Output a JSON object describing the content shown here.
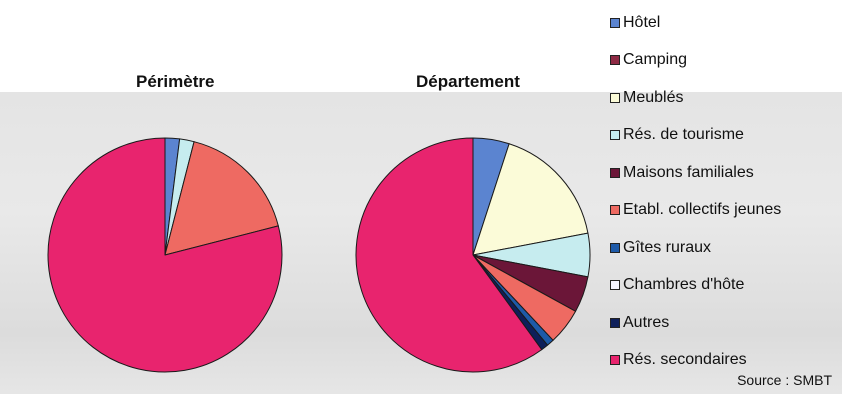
{
  "chart_data": [
    {
      "type": "pie",
      "title": "Périmètre",
      "labels": [
        "Hôtel",
        "Camping",
        "Meublés",
        "Rés. de tourisme",
        "Maisons familiales",
        "Etabl. collectifs jeunes",
        "Gîtes ruraux",
        "Chambres d'hôte",
        "Autres",
        "Rés. secondaires"
      ],
      "values": [
        2.0,
        0.0,
        0.0,
        2.0,
        0.0,
        17.0,
        0.0,
        0.0,
        0.0,
        79.0
      ]
    },
    {
      "type": "pie",
      "title": "Département",
      "labels": [
        "Hôtel",
        "Camping",
        "Meublés",
        "Rés. de tourisme",
        "Maisons familiales",
        "Etabl. collectifs jeunes",
        "Gîtes ruraux",
        "Chambres d'hôte",
        "Autres",
        "Rés. secondaires"
      ],
      "values": [
        5.0,
        0.0,
        17.0,
        6.0,
        5.0,
        5.0,
        1.0,
        0.0,
        1.0,
        60.0
      ]
    }
  ],
  "legend": {
    "entries": [
      {
        "label": "Hôtel",
        "color": "#5b84d0"
      },
      {
        "label": "Camping",
        "color": "#8e2a44"
      },
      {
        "label": "Meublés",
        "color": "#fbfbd8"
      },
      {
        "label": "Rés. de tourisme",
        "color": "#c6ecef"
      },
      {
        "label": "Maisons familiales",
        "color": "#6b1638"
      },
      {
        "label": "Etabl. collectifs jeunes",
        "color": "#ee6a62"
      },
      {
        "label": "Gîtes ruraux",
        "color": "#1e5aa8"
      },
      {
        "label": "Chambres d'hôte",
        "color": "#f4f4ff"
      },
      {
        "label": "Autres",
        "color": "#0e1f5a"
      },
      {
        "label": "Rés. secondaires",
        "color": "#e8246e"
      }
    ]
  },
  "source": "Source : SMBT"
}
